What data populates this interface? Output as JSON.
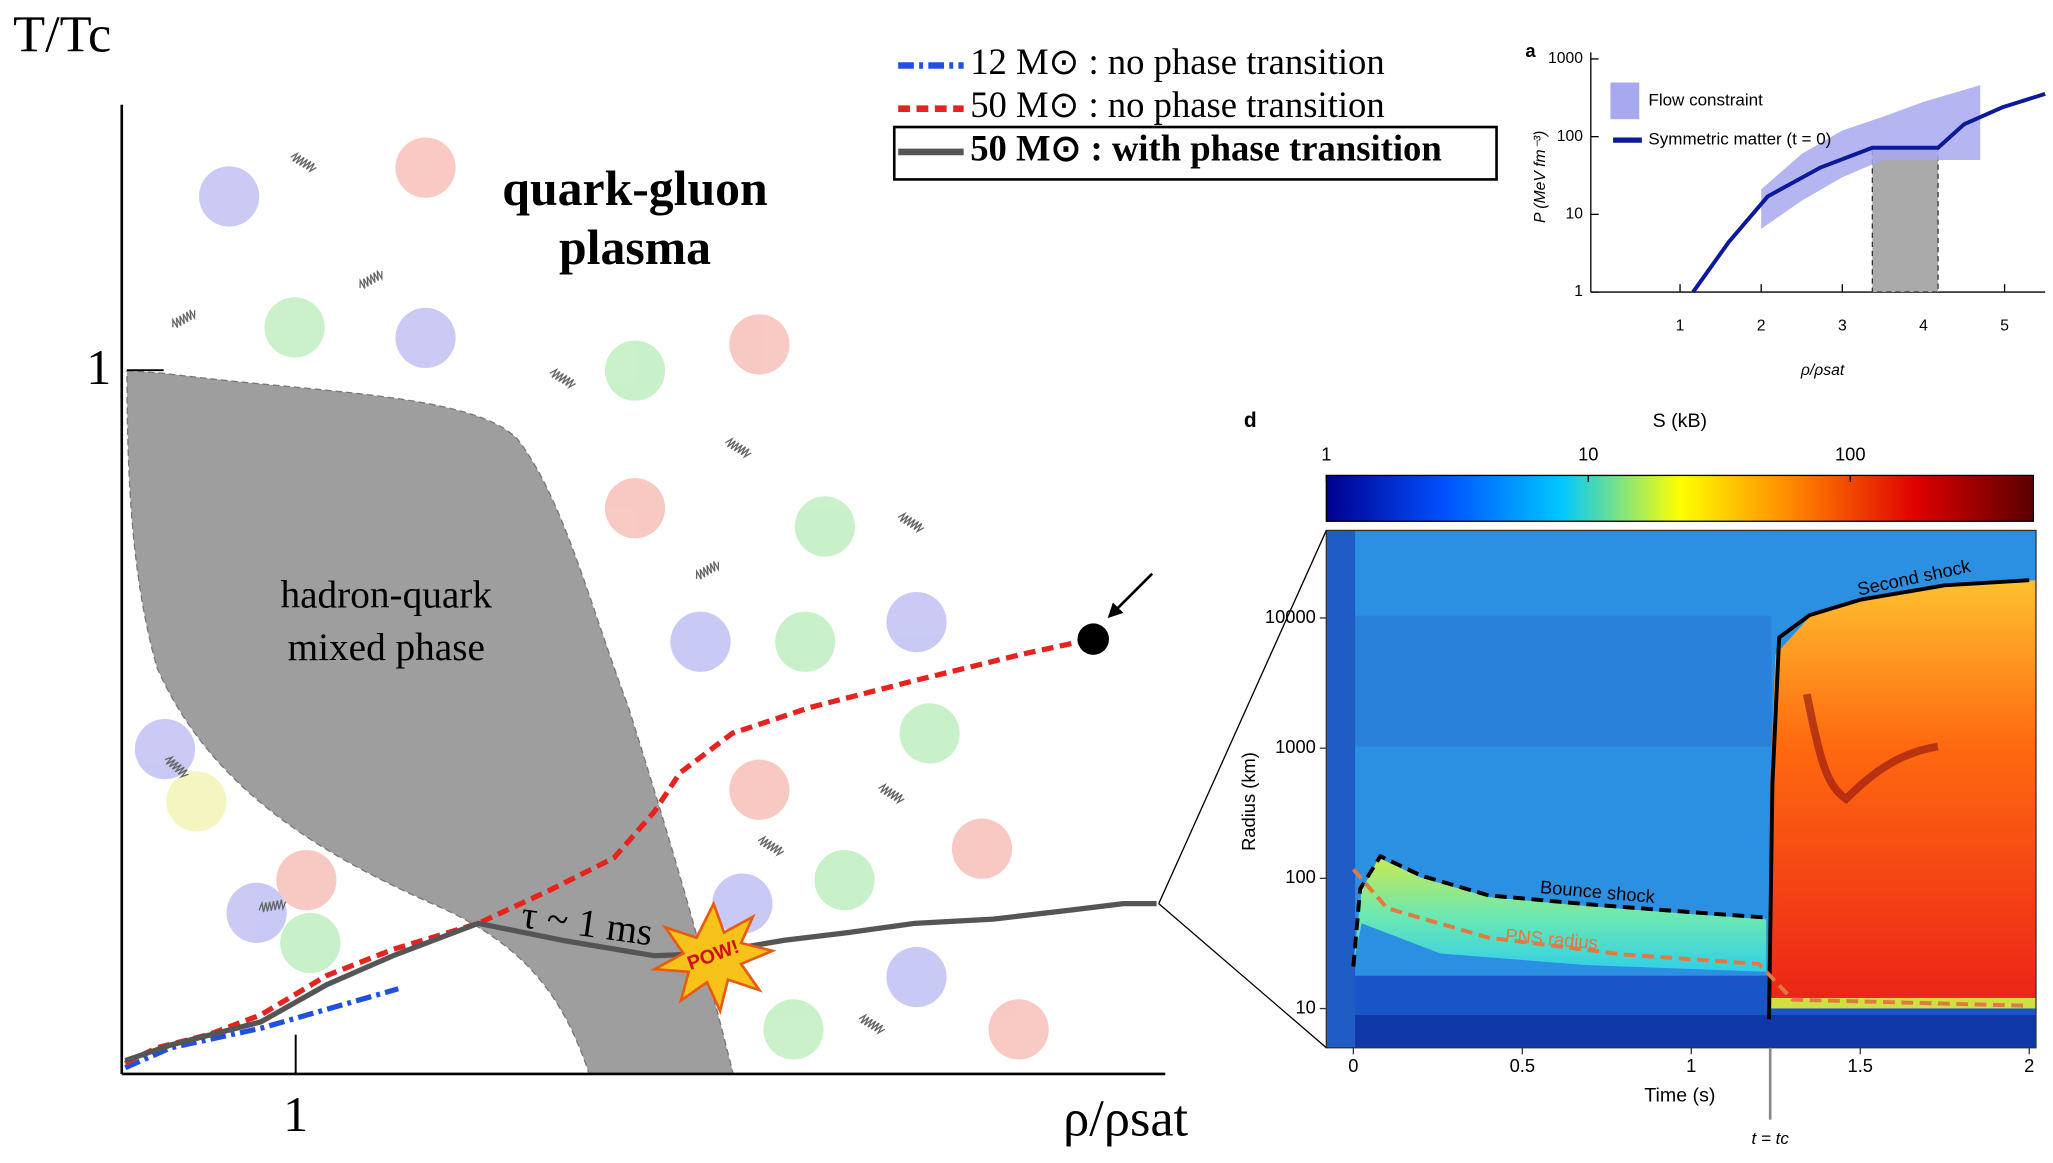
{
  "chart_data": [
    {
      "type": "line",
      "xlabel": "ρ/ρsat",
      "ylabel": "T/Tc",
      "xlim": [
        0,
        6
      ],
      "ylim": [
        0,
        1.5
      ],
      "xticks": [
        1
      ],
      "yticks": [
        1
      ],
      "annotations": [
        "quark-gluon",
        "plasma",
        "hadron-quark",
        "mixed phase",
        "τ ~ 1 ms",
        "POW!"
      ],
      "series": [
        {
          "name": "12 M⊙ : no phase transition",
          "color": "#2050e0",
          "dash": "dash-dot",
          "x": [
            0.02,
            0.28,
            0.8,
            1.59
          ],
          "values": [
            0.009,
            0.037,
            0.065,
            0.121
          ]
        },
        {
          "name": "50 M⊙ : no phase transition",
          "color": "#e8231f",
          "dash": "dash",
          "x": [
            0.02,
            0.2,
            0.5,
            0.8,
            1.18,
            1.56,
            2.05,
            2.46,
            2.83,
            3.06,
            3.21,
            3.51,
            3.96,
            4.56,
            5.17,
            5.58
          ],
          "values": [
            0.015,
            0.037,
            0.056,
            0.084,
            0.14,
            0.177,
            0.214,
            0.261,
            0.307,
            0.372,
            0.428,
            0.484,
            0.521,
            0.559,
            0.596,
            0.618
          ]
        },
        {
          "name": "50 M⊙ : with phase transition",
          "color": "#555555",
          "dash": "solid",
          "highlight": true,
          "x": [
            0.02,
            0.28,
            0.8,
            1.18,
            1.56,
            2.05,
            2.53,
            3.06,
            3.36,
            3.81,
            4.18,
            4.56,
            5.01,
            5.46,
            5.76,
            5.95
          ],
          "values": [
            0.019,
            0.041,
            0.074,
            0.127,
            0.168,
            0.214,
            0.19,
            0.168,
            0.171,
            0.19,
            0.201,
            0.214,
            0.22,
            0.233,
            0.242,
            0.242
          ]
        }
      ]
    },
    {
      "type": "line",
      "title": "a",
      "xlabel": "ρ/ρsat",
      "ylabel": "P (MeV fm⁻³)",
      "xlim": [
        -0.1,
        5.5
      ],
      "ylim": [
        1,
        1000
      ],
      "yscale": "log",
      "xticks": [
        1,
        2,
        3,
        4,
        5
      ],
      "yticks": [
        {
          "value": 1,
          "label": "10⁰"
        },
        {
          "value": 10,
          "label": "10¹"
        },
        {
          "value": 100,
          "label": "10²"
        },
        {
          "value": 1000,
          "label": "10³"
        }
      ],
      "shaded_range": {
        "x": [
          3.37,
          4.18
        ],
        "y": [
          1,
          72
        ],
        "color": "#aaaaaa"
      },
      "series": [
        {
          "name": "Flow constraint",
          "color": "#a8a8f0",
          "x": [
            2,
            2.5,
            3,
            3.5,
            4,
            4.7
          ],
          "low": [
            6.5,
            15,
            30,
            50,
            50,
            50
          ],
          "high": [
            21,
            60,
            120,
            180,
            280,
            460
          ]
        },
        {
          "name": "Symmetric matter (t = 0)",
          "color": "#0a1a9a",
          "dash": "solid",
          "x": [
            1.16,
            1.6,
            2.08,
            2.73,
            3.37,
            4.18,
            4.5,
            4.98,
            5.5
          ],
          "values": [
            1,
            4.4,
            17,
            40,
            72,
            72,
            144,
            240,
            355
          ]
        }
      ]
    },
    {
      "type": "line",
      "title": "d",
      "xlabel": "Time (s)",
      "ylabel": "Radius (km)",
      "xlim": [
        -0.08,
        2.02
      ],
      "ylim": [
        5,
        47000
      ],
      "yscale": "log",
      "xticks": [
        0,
        0.5,
        {
          "value": 1,
          "label": "1.0"
        },
        1.5,
        {
          "value": 2,
          "label": "2.0"
        }
      ],
      "yticks": [
        {
          "value": 10,
          "label": "10¹"
        },
        {
          "value": 100,
          "label": "10²"
        },
        {
          "value": 1000,
          "label": "10³"
        },
        {
          "value": 10000,
          "label": "10⁴"
        }
      ],
      "colorbar": {
        "label": "S (kB)",
        "lim": [
          1,
          500
        ],
        "scale": "log",
        "ticks": [
          1,
          10,
          100
        ],
        "colors": [
          "#00008f",
          "#0050ff",
          "#00c8ff",
          "#ffff00",
          "#ff8000",
          "#e00000",
          "#5a0000"
        ]
      },
      "annotations": [
        "Second shock",
        "Bounce shock",
        "PNS radius",
        "t = tc"
      ],
      "series": [
        {
          "name": "Second shock",
          "color": "#000000",
          "dash": "solid",
          "x": [
            1.23,
            1.24,
            1.26,
            1.35,
            1.5,
            1.75,
            2.0
          ],
          "values": [
            8.3,
            525,
            7079,
            10500,
            13800,
            17800,
            19500
          ]
        },
        {
          "name": "Bounce shock",
          "color": "#000000",
          "dash": "dash",
          "x": [
            0,
            0.02,
            0.08,
            0.2,
            0.4,
            0.7,
            1.0,
            1.22
          ],
          "values": [
            21,
            83,
            148,
            105,
            74,
            63,
            55,
            50
          ]
        },
        {
          "name": "PNS radius",
          "color": "#e07a40",
          "dash": "dash",
          "x": [
            0,
            0.1,
            0.4,
            0.8,
            1.2,
            1.3,
            2.0
          ],
          "values": [
            117,
            59,
            35,
            26,
            22,
            11.7,
            10.5
          ]
        }
      ]
    }
  ]
}
